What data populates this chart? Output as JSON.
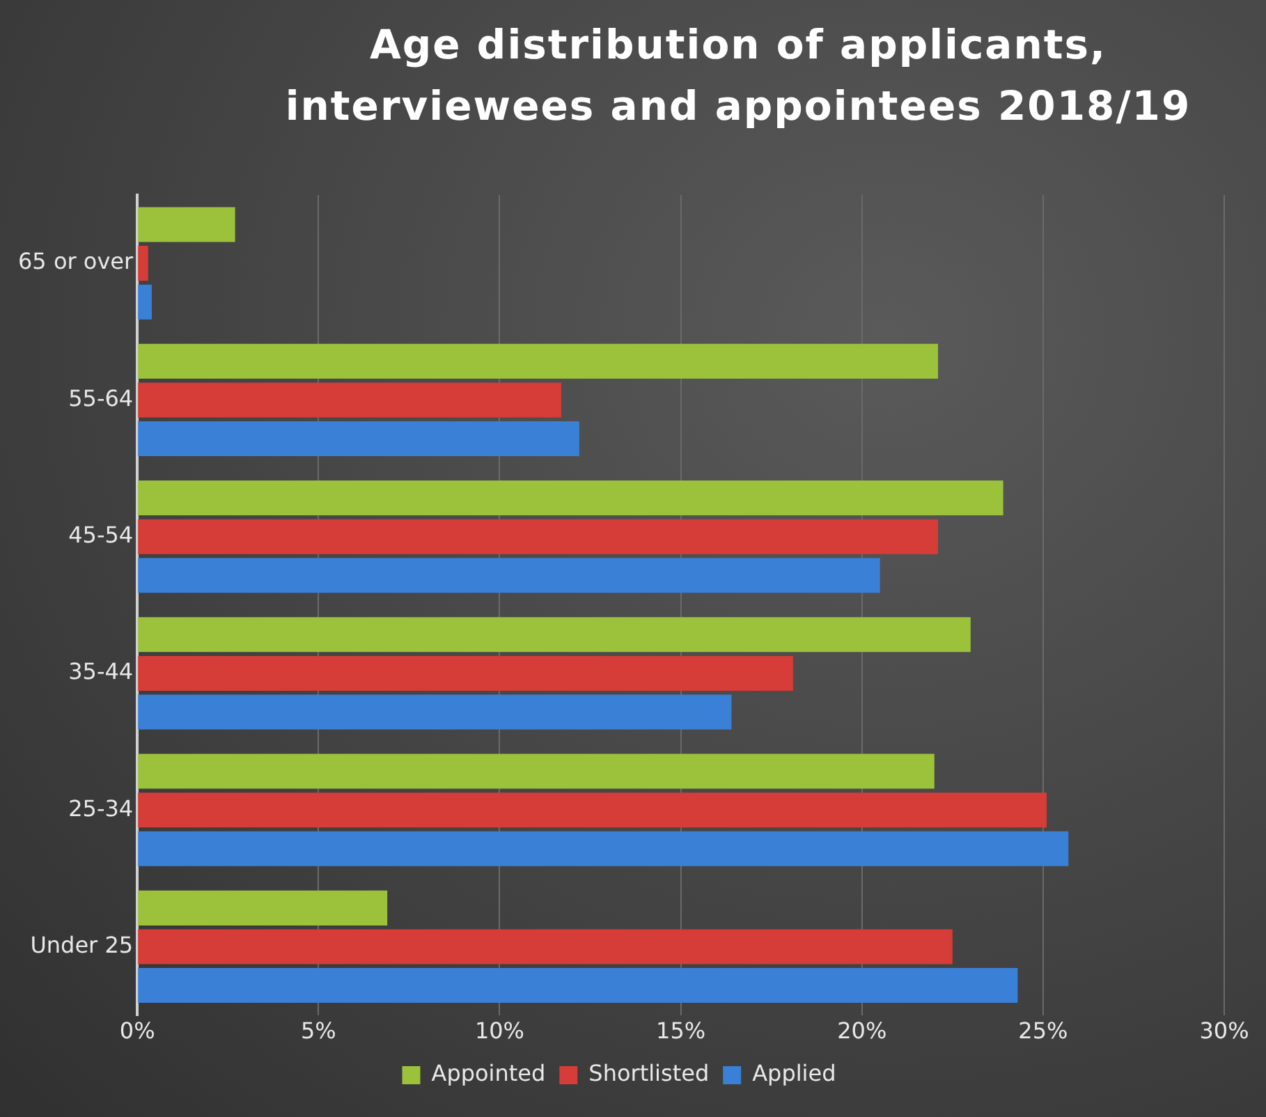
{
  "chart_data": {
    "type": "bar",
    "orientation": "horizontal",
    "title": "Age distribution of applicants, interviewees and appointees 2018/19",
    "categories": [
      "65 or over",
      "55-64",
      "45-54",
      "35-44",
      "25-34",
      "Under 25"
    ],
    "series": [
      {
        "name": "Appointed",
        "color": "#9cc23c",
        "values": [
          2.7,
          22.1,
          23.9,
          23.0,
          22.0,
          6.9
        ]
      },
      {
        "name": "Shortlisted",
        "color": "#d63c38",
        "values": [
          0.3,
          11.7,
          22.1,
          18.1,
          25.1,
          22.5
        ]
      },
      {
        "name": "Applied",
        "color": "#3a80d6",
        "values": [
          0.4,
          12.2,
          20.5,
          16.4,
          25.7,
          24.3
        ]
      }
    ],
    "xlim": [
      0,
      30
    ],
    "xticks": [
      {
        "value": 0,
        "label": "0%"
      },
      {
        "value": 5,
        "label": "5%"
      },
      {
        "value": 10,
        "label": "10%"
      },
      {
        "value": 15,
        "label": "15%"
      },
      {
        "value": 20,
        "label": "20%"
      },
      {
        "value": 25,
        "label": "25%"
      },
      {
        "value": 30,
        "label": "30%"
      }
    ],
    "grid": "x",
    "legend": "bottom"
  }
}
